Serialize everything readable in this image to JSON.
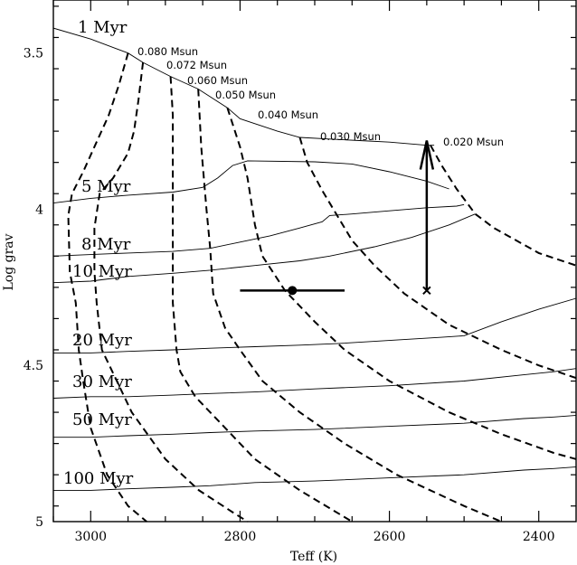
{
  "chart_data": {
    "type": "line",
    "xlabel": "Teff (K)",
    "ylabel": "Log grav",
    "xlim": [
      3050,
      2350
    ],
    "ylim": [
      3.33,
      5.0
    ],
    "x_ticks": [
      3000,
      2800,
      2600,
      2400
    ],
    "y_ticks": [
      3.5,
      4,
      4.5,
      5
    ],
    "x_tick_labels": [
      "3000",
      "2800",
      "2600",
      "2400"
    ],
    "y_tick_labels": [
      "3.5",
      "4",
      "4.5",
      "5"
    ],
    "isochrones": [
      {
        "label": "1 Myr",
        "points": [
          [
            3050,
            3.42
          ],
          [
            3000,
            3.455
          ],
          [
            2950,
            3.5
          ],
          [
            2930,
            3.53
          ],
          [
            2893,
            3.575
          ],
          [
            2856,
            3.615
          ],
          [
            2817,
            3.675
          ],
          [
            2800,
            3.71
          ],
          [
            2750,
            3.75
          ],
          [
            2720,
            3.77
          ],
          [
            2680,
            3.775
          ],
          [
            2640,
            3.78
          ],
          [
            2600,
            3.785
          ],
          [
            2550,
            3.795
          ],
          [
            2540,
            3.795
          ]
        ]
      },
      {
        "label": "5 Myr",
        "points": [
          [
            3050,
            3.98
          ],
          [
            3000,
            3.965
          ],
          [
            2950,
            3.955
          ],
          [
            2890,
            3.945
          ],
          [
            2850,
            3.93
          ],
          [
            2830,
            3.9
          ],
          [
            2810,
            3.86
          ],
          [
            2790,
            3.845
          ],
          [
            2700,
            3.848
          ],
          [
            2650,
            3.855
          ],
          [
            2600,
            3.88
          ],
          [
            2550,
            3.91
          ],
          [
            2520,
            3.935
          ]
        ]
      },
      {
        "label": "8 Myr",
        "points": [
          [
            3050,
            4.15
          ],
          [
            3000,
            4.145
          ],
          [
            2950,
            4.14
          ],
          [
            2890,
            4.135
          ],
          [
            2840,
            4.125
          ],
          [
            2800,
            4.105
          ],
          [
            2760,
            4.085
          ],
          [
            2720,
            4.06
          ],
          [
            2690,
            4.04
          ],
          [
            2680,
            4.02
          ],
          [
            2650,
            4.015
          ],
          [
            2600,
            4.005
          ],
          [
            2550,
            3.995
          ],
          [
            2510,
            3.99
          ],
          [
            2500,
            3.985
          ]
        ]
      },
      {
        "label": "10 Myr",
        "points": [
          [
            3050,
            4.235
          ],
          [
            3000,
            4.23
          ],
          [
            2950,
            4.215
          ],
          [
            2890,
            4.205
          ],
          [
            2840,
            4.195
          ],
          [
            2780,
            4.18
          ],
          [
            2720,
            4.165
          ],
          [
            2680,
            4.15
          ],
          [
            2620,
            4.12
          ],
          [
            2570,
            4.09
          ],
          [
            2520,
            4.05
          ],
          [
            2485,
            4.015
          ]
        ]
      },
      {
        "label": "20 Myr",
        "points": [
          [
            3050,
            4.46
          ],
          [
            3000,
            4.46
          ],
          [
            2950,
            4.455
          ],
          [
            2890,
            4.45
          ],
          [
            2840,
            4.445
          ],
          [
            2780,
            4.44
          ],
          [
            2720,
            4.435
          ],
          [
            2670,
            4.43
          ],
          [
            2600,
            4.42
          ],
          [
            2530,
            4.41
          ],
          [
            2500,
            4.405
          ],
          [
            2450,
            4.36
          ],
          [
            2400,
            4.32
          ],
          [
            2350,
            4.285
          ]
        ]
      },
      {
        "label": "30 Myr",
        "points": [
          [
            3050,
            4.605
          ],
          [
            3000,
            4.6
          ],
          [
            2950,
            4.6
          ],
          [
            2890,
            4.595
          ],
          [
            2840,
            4.59
          ],
          [
            2780,
            4.585
          ],
          [
            2700,
            4.575
          ],
          [
            2600,
            4.565
          ],
          [
            2500,
            4.55
          ],
          [
            2420,
            4.53
          ],
          [
            2380,
            4.52
          ],
          [
            2350,
            4.51
          ]
        ]
      },
      {
        "label": "50 Myr",
        "points": [
          [
            3050,
            4.73
          ],
          [
            3000,
            4.73
          ],
          [
            2950,
            4.725
          ],
          [
            2890,
            4.72
          ],
          [
            2840,
            4.715
          ],
          [
            2780,
            4.71
          ],
          [
            2700,
            4.705
          ],
          [
            2600,
            4.695
          ],
          [
            2500,
            4.685
          ],
          [
            2420,
            4.67
          ],
          [
            2380,
            4.665
          ],
          [
            2350,
            4.66
          ]
        ]
      },
      {
        "label": "100 Myr",
        "points": [
          [
            3050,
            4.9
          ],
          [
            3000,
            4.9
          ],
          [
            2950,
            4.895
          ],
          [
            2890,
            4.89
          ],
          [
            2840,
            4.885
          ],
          [
            2780,
            4.875
          ],
          [
            2700,
            4.87
          ],
          [
            2600,
            4.86
          ],
          [
            2500,
            4.85
          ],
          [
            2420,
            4.835
          ],
          [
            2380,
            4.83
          ],
          [
            2350,
            4.825
          ]
        ]
      }
    ],
    "mass_tracks": [
      {
        "label": "0.080 Msun",
        "points": [
          [
            2950,
            3.5
          ],
          [
            2962,
            3.6
          ],
          [
            2976,
            3.7
          ],
          [
            2995,
            3.8
          ],
          [
            3010,
            3.88
          ],
          [
            3025,
            3.95
          ],
          [
            3030,
            4.02
          ],
          [
            3028,
            4.2
          ],
          [
            3020,
            4.3
          ],
          [
            3016,
            4.45
          ],
          [
            3010,
            4.55
          ],
          [
            3000,
            4.7
          ],
          [
            2978,
            4.85
          ],
          [
            2950,
            4.95
          ],
          [
            2925,
            5.0
          ]
        ]
      },
      {
        "label": "0.072 Msun",
        "points": [
          [
            2930,
            3.53
          ],
          [
            2936,
            3.65
          ],
          [
            2942,
            3.75
          ],
          [
            2950,
            3.82
          ],
          [
            2970,
            3.9
          ],
          [
            2988,
            3.95
          ],
          [
            2995,
            4.06
          ],
          [
            2995,
            4.2
          ],
          [
            2992,
            4.3
          ],
          [
            2985,
            4.45
          ],
          [
            2965,
            4.55
          ],
          [
            2945,
            4.65
          ],
          [
            2900,
            4.8
          ],
          [
            2855,
            4.9
          ],
          [
            2810,
            4.97
          ],
          [
            2790,
            5.0
          ]
        ]
      },
      {
        "label": "0.060 Msun",
        "points": [
          [
            2893,
            3.575
          ],
          [
            2890,
            3.7
          ],
          [
            2890,
            3.9
          ],
          [
            2890,
            4.1
          ],
          [
            2890,
            4.3
          ],
          [
            2885,
            4.45
          ],
          [
            2880,
            4.52
          ],
          [
            2860,
            4.6
          ],
          [
            2820,
            4.7
          ],
          [
            2780,
            4.8
          ],
          [
            2720,
            4.9
          ],
          [
            2650,
            5.0
          ]
        ]
      },
      {
        "label": "0.050 Msun",
        "points": [
          [
            2856,
            3.615
          ],
          [
            2852,
            3.8
          ],
          [
            2845,
            4.0
          ],
          [
            2840,
            4.125
          ],
          [
            2836,
            4.27
          ],
          [
            2820,
            4.38
          ],
          [
            2800,
            4.45
          ],
          [
            2770,
            4.55
          ],
          [
            2720,
            4.65
          ],
          [
            2660,
            4.75
          ],
          [
            2590,
            4.85
          ],
          [
            2500,
            4.95
          ],
          [
            2450,
            5.0
          ]
        ]
      },
      {
        "label": "0.040 Msun",
        "points": [
          [
            2817,
            3.675
          ],
          [
            2800,
            3.8
          ],
          [
            2790,
            3.9
          ],
          [
            2780,
            4.05
          ],
          [
            2770,
            4.15
          ],
          [
            2740,
            4.26
          ],
          [
            2700,
            4.36
          ],
          [
            2660,
            4.45
          ],
          [
            2600,
            4.55
          ],
          [
            2520,
            4.65
          ],
          [
            2450,
            4.72
          ],
          [
            2380,
            4.78
          ],
          [
            2350,
            4.8
          ]
        ]
      },
      {
        "label": "0.030 Msun",
        "points": [
          [
            2720,
            3.77
          ],
          [
            2710,
            3.85
          ],
          [
            2690,
            3.94
          ],
          [
            2670,
            4.02
          ],
          [
            2650,
            4.1
          ],
          [
            2620,
            4.18
          ],
          [
            2580,
            4.27
          ],
          [
            2520,
            4.37
          ],
          [
            2450,
            4.45
          ],
          [
            2400,
            4.5
          ],
          [
            2350,
            4.54
          ]
        ]
      },
      {
        "label": "0.020 Msun",
        "points": [
          [
            2545,
            3.795
          ],
          [
            2530,
            3.86
          ],
          [
            2510,
            3.935
          ],
          [
            2485,
            4.015
          ],
          [
            2460,
            4.06
          ],
          [
            2430,
            4.1
          ],
          [
            2400,
            4.14
          ],
          [
            2375,
            4.16
          ],
          [
            2350,
            4.18
          ]
        ]
      }
    ],
    "observed_point": {
      "x": 2730,
      "y": 4.26,
      "xerr": 70
    },
    "upper_limit_point": {
      "x": 2550,
      "y": 4.26,
      "arrow_to_y": 3.78
    }
  }
}
